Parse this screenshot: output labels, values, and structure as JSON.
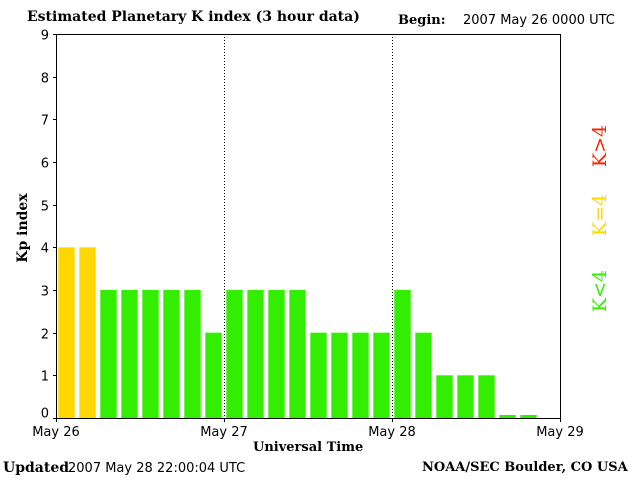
{
  "header": {
    "title": "Estimated Planetary K index (3 hour data)",
    "begin_label": "Begin:",
    "begin_value": "2007 May 26 0000 UTC"
  },
  "footer": {
    "updated_label": "Updated",
    "updated_value": "2007 May 28 22:00:04 UTC",
    "source": "NOAA/SEC Boulder, CO USA"
  },
  "legend": {
    "low": {
      "text": "K<4",
      "color": "#33ee00"
    },
    "mid": {
      "text": "K=4",
      "color": "#ffd700"
    },
    "high": {
      "text": "K>4",
      "color": "#ff2200"
    }
  },
  "chart_data": {
    "type": "bar",
    "title": "Estimated Planetary K index (3 hour data)",
    "xlabel": "Universal Time",
    "ylabel": "Kp index",
    "ylim": [
      0,
      9
    ],
    "yticks": [
      "0",
      "1",
      "2",
      "3",
      "4",
      "5",
      "6",
      "7",
      "8",
      "9"
    ],
    "x_ticks": [
      "May 26",
      "May 27",
      "May 28",
      "May 29"
    ],
    "day_dividers": [
      "May 27",
      "May 28"
    ],
    "values": [
      4,
      4,
      3,
      3,
      3,
      3,
      3,
      2,
      3,
      3,
      3,
      3,
      2,
      2,
      2,
      2,
      3,
      2,
      1,
      1,
      1,
      0,
      0
    ],
    "bar_colors": {
      "below_4": "#33ee00",
      "equal_4": "#ffd700",
      "above_4": "#ff2200"
    }
  }
}
